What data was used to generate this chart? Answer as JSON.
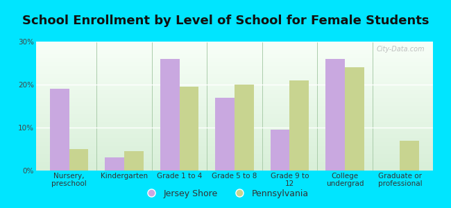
{
  "title": "School Enrollment by Level of School for Female Students",
  "categories": [
    "Nursery,\npreschool",
    "Kindergarten",
    "Grade 1 to 4",
    "Grade 5 to 8",
    "Grade 9 to\n12",
    "College\nundergrad",
    "Graduate or\nprofessional"
  ],
  "jersey_shore": [
    19,
    3,
    26,
    17,
    9.5,
    26,
    0
  ],
  "pennsylvania": [
    5,
    4.5,
    19.5,
    20,
    21,
    24,
    7
  ],
  "jersey_shore_color": "#c9a8e0",
  "pennsylvania_color": "#c8d490",
  "background_color": "#00e5ff",
  "ylim": [
    0,
    30
  ],
  "yticks": [
    0,
    10,
    20,
    30
  ],
  "ytick_labels": [
    "0%",
    "10%",
    "20%",
    "30%"
  ],
  "bar_width": 0.35,
  "legend_labels": [
    "Jersey Shore",
    "Pennsylvania"
  ],
  "title_fontsize": 13,
  "tick_fontsize": 7.5,
  "legend_fontsize": 9,
  "watermark": "City-Data.com"
}
